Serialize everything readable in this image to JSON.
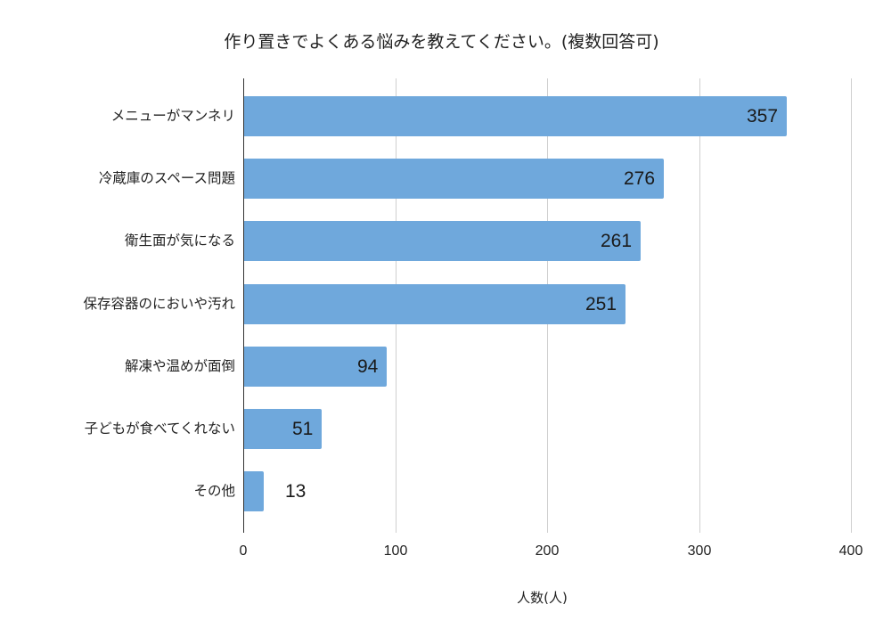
{
  "chart_data": {
    "type": "bar",
    "orientation": "horizontal",
    "title": "作り置きでよくある悩みを教えてください。(複数回答可)",
    "xlabel": "人数(人)",
    "ylabel": "",
    "categories": [
      "メニューがマンネリ",
      "冷蔵庫のスペース問題",
      "衛生面が気になる",
      "保存容器のにおいや汚れ",
      "解凍や温めが面倒",
      "子どもが食べてくれない",
      "その他"
    ],
    "values": [
      357,
      276,
      261,
      251,
      94,
      51,
      13
    ],
    "value_labels": [
      "357",
      "276",
      "261",
      "251",
      "94",
      "51",
      "13"
    ],
    "xlim": [
      0,
      400
    ],
    "x_ticks": [
      0,
      100,
      200,
      300,
      400
    ],
    "x_tick_labels": [
      "0",
      "100",
      "200",
      "300",
      "400"
    ],
    "grid": "vertical",
    "legend": null,
    "bar_color": "#6fa8dc"
  }
}
